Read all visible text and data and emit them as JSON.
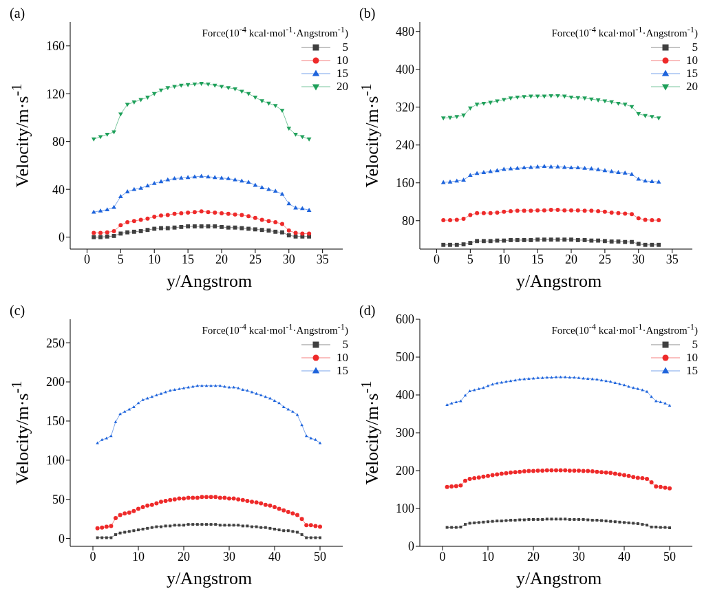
{
  "chart_data": [
    {
      "type": "line",
      "title": "(a)",
      "xlabel": "y/Angstrom",
      "ylabel": "Velocity/m·s$^{-1}$",
      "legend_title": "Force(10$^{-4}$ kcal·mol$^{-1}$·Angstrom$^{-1}$)",
      "legend": "top right",
      "x": [
        1,
        2,
        3,
        4,
        5,
        6,
        7,
        8,
        9,
        10,
        11,
        12,
        13,
        14,
        15,
        16,
        17,
        18,
        19,
        20,
        21,
        22,
        23,
        24,
        25,
        26,
        27,
        28,
        29,
        30,
        31,
        32,
        33
      ],
      "xlim": [
        -2.5,
        38
      ],
      "xticks": [
        0,
        5,
        10,
        15,
        20,
        25,
        30,
        35
      ],
      "ylim": [
        -10,
        180
      ],
      "yticks": [
        0,
        40,
        80,
        120,
        160
      ],
      "series": [
        {
          "name": "5",
          "color": "#404040",
          "marker": "square",
          "values": [
            0,
            0,
            0.5,
            1,
            3,
            4,
            4.5,
            5,
            6,
            7,
            7.5,
            7.5,
            8,
            8.5,
            9,
            9,
            9,
            9,
            9,
            8.5,
            8,
            8,
            7.5,
            7,
            6.5,
            6,
            5.5,
            4.5,
            4,
            1.5,
            0.5,
            0.5,
            0.5
          ]
        },
        {
          "name": "10",
          "color": "#ee2a2a",
          "marker": "circle",
          "values": [
            3.5,
            3.5,
            4,
            5,
            10,
            12.5,
            13.5,
            14.5,
            15.5,
            17,
            18,
            18.5,
            19.5,
            20,
            20.5,
            21,
            21.5,
            21,
            20.5,
            20,
            19.5,
            19,
            18.5,
            17.5,
            16,
            14.5,
            13.5,
            12.5,
            11,
            5.5,
            3.5,
            3,
            3
          ]
        },
        {
          "name": "15",
          "color": "#1e64dc",
          "marker": "triangle",
          "values": [
            21,
            22,
            23,
            25,
            34,
            38,
            40,
            41,
            43,
            45,
            46.5,
            48,
            49,
            49.5,
            50,
            50.5,
            51,
            50.5,
            50,
            49.5,
            49,
            48,
            47,
            46,
            43.5,
            41.5,
            40,
            38.5,
            36,
            28,
            24.5,
            24,
            22.5
          ]
        },
        {
          "name": "20",
          "color": "#1fa05a",
          "marker": "triangle-down",
          "values": [
            82,
            84,
            86,
            88,
            103,
            111,
            113,
            115,
            117,
            120,
            123,
            125,
            126,
            127,
            127.5,
            128,
            128.5,
            128,
            127,
            126,
            125,
            124,
            122,
            120,
            117,
            114,
            112,
            110,
            106,
            91,
            86,
            84,
            82
          ]
        }
      ]
    },
    {
      "type": "line",
      "title": "(b)",
      "xlabel": "y/Angstrom",
      "ylabel": "Velocity/m·s$^{-1}$",
      "legend_title": "Force(10$^{-4}$ kcal·mol$^{-1}$·Angstrom$^{-1}$)",
      "legend": "top right",
      "x": [
        1,
        2,
        3,
        4,
        5,
        6,
        7,
        8,
        9,
        10,
        11,
        12,
        13,
        14,
        15,
        16,
        17,
        18,
        19,
        20,
        21,
        22,
        23,
        24,
        25,
        26,
        27,
        28,
        29,
        30,
        31,
        32,
        33
      ],
      "xlim": [
        -2.5,
        38
      ],
      "xticks": [
        0,
        5,
        10,
        15,
        20,
        25,
        30,
        35
      ],
      "ylim": [
        20,
        500
      ],
      "yticks": [
        80,
        160,
        240,
        320,
        400,
        480
      ],
      "series": [
        {
          "name": "5",
          "color": "#404040",
          "marker": "square",
          "values": [
            29,
            29,
            29,
            30,
            33,
            37,
            37,
            37,
            38,
            38,
            39,
            39,
            39,
            39,
            40,
            40,
            40,
            40,
            40,
            40,
            39,
            39,
            38,
            38,
            37,
            36,
            36,
            35,
            35,
            31,
            29,
            29,
            29
          ]
        },
        {
          "name": "10",
          "color": "#ee2a2a",
          "marker": "circle",
          "values": [
            81,
            81,
            82,
            84,
            92,
            96,
            96,
            96,
            97,
            99,
            100,
            101,
            101,
            101,
            102,
            102,
            103,
            103,
            102,
            102,
            102,
            101,
            101,
            100,
            99,
            97,
            96,
            95,
            94,
            85,
            82,
            81,
            81
          ]
        },
        {
          "name": "15",
          "color": "#1e64dc",
          "marker": "triangle",
          "values": [
            161,
            162,
            164,
            166,
            176,
            180,
            182,
            184,
            186,
            189,
            190,
            191,
            192,
            193,
            194,
            195,
            194,
            194,
            193,
            192,
            192,
            191,
            190,
            188,
            186,
            184,
            182,
            181,
            178,
            168,
            164,
            163,
            162
          ]
        },
        {
          "name": "20",
          "color": "#1fa05a",
          "marker": "triangle-down",
          "values": [
            297,
            298,
            300,
            303,
            318,
            326,
            328,
            330,
            333,
            336,
            339,
            341,
            342,
            343,
            343,
            343,
            344,
            344,
            343,
            341,
            340,
            339,
            337,
            335,
            333,
            331,
            328,
            326,
            321,
            306,
            302,
            300,
            297
          ]
        }
      ]
    },
    {
      "type": "line",
      "title": "(c)",
      "xlabel": "y/Angstrom",
      "ylabel": "Velocity/m·s$^{-1}$",
      "legend_title": "Force(10$^{-4}$ kcal·mol$^{-1}$·Angstrom$^{-1}$)",
      "legend": "top right",
      "x": [
        1,
        2,
        3,
        4,
        5,
        6,
        7,
        8,
        9,
        10,
        11,
        12,
        13,
        14,
        15,
        16,
        17,
        18,
        19,
        20,
        21,
        22,
        23,
        24,
        25,
        26,
        27,
        28,
        29,
        30,
        31,
        32,
        33,
        34,
        35,
        36,
        37,
        38,
        39,
        40,
        41,
        42,
        43,
        44,
        45,
        46,
        47,
        48,
        49,
        50
      ],
      "xlim": [
        -5,
        55
      ],
      "xticks": [
        0,
        10,
        20,
        30,
        40,
        50
      ],
      "ylim": [
        -10,
        280
      ],
      "yticks": [
        0,
        50,
        100,
        150,
        200,
        250
      ],
      "series": [
        {
          "name": "5",
          "color": "#404040",
          "marker": "square",
          "values": [
            1,
            1,
            1,
            1,
            5,
            7,
            8,
            9,
            10,
            11,
            12,
            13,
            14,
            15,
            15,
            16,
            16,
            17,
            17,
            17,
            18,
            18,
            18,
            18,
            18,
            18,
            18,
            17,
            17,
            17,
            17,
            17,
            16,
            16,
            15,
            15,
            14,
            14,
            13,
            12,
            11,
            10,
            10,
            9,
            8,
            5,
            1,
            1,
            1,
            1
          ]
        },
        {
          "name": "10",
          "color": "#ee2a2a",
          "marker": "circle",
          "values": [
            13,
            14,
            15,
            16,
            26,
            30,
            32,
            33,
            35,
            38,
            40,
            42,
            43,
            45,
            47,
            48,
            49,
            50,
            51,
            51,
            52,
            52,
            52,
            53,
            53,
            53,
            53,
            52,
            52,
            51,
            51,
            50,
            49,
            48,
            47,
            46,
            45,
            43,
            42,
            40,
            38,
            36,
            34,
            32,
            30,
            25,
            17,
            17,
            16,
            15
          ]
        },
        {
          "name": "15",
          "color": "#1e64dc",
          "marker": "triangle",
          "values": [
            122,
            126,
            128,
            131,
            149,
            159,
            162,
            165,
            168,
            173,
            177,
            179,
            181,
            183,
            185,
            187,
            189,
            190,
            191,
            192,
            193,
            194,
            195,
            195,
            195,
            195,
            195,
            195,
            194,
            193,
            193,
            192,
            190,
            189,
            187,
            185,
            183,
            181,
            179,
            176,
            173,
            168,
            165,
            162,
            158,
            145,
            131,
            128,
            126,
            122
          ]
        }
      ]
    },
    {
      "type": "line",
      "title": "(d)",
      "xlabel": "y/Angstrom",
      "ylabel": "Velocity/m·s$^{-1}$",
      "legend_title": "Force(10$^{-4}$ kcal·mol$^{-1}$·Angstrom$^{-1}$)",
      "legend": "top right",
      "x": [
        1,
        2,
        3,
        4,
        5,
        6,
        7,
        8,
        9,
        10,
        11,
        12,
        13,
        14,
        15,
        16,
        17,
        18,
        19,
        20,
        21,
        22,
        23,
        24,
        25,
        26,
        27,
        28,
        29,
        30,
        31,
        32,
        33,
        34,
        35,
        36,
        37,
        38,
        39,
        40,
        41,
        42,
        43,
        44,
        45,
        46,
        47,
        48,
        49,
        50
      ],
      "xlim": [
        -5,
        55
      ],
      "xticks": [
        0,
        10,
        20,
        30,
        40,
        50
      ],
      "ylim": [
        0,
        600
      ],
      "yticks": [
        0,
        100,
        200,
        300,
        400,
        500,
        600
      ],
      "series": [
        {
          "name": "5",
          "color": "#404040",
          "marker": "square",
          "values": [
            50,
            50,
            50,
            51,
            58,
            61,
            62,
            63,
            64,
            65,
            66,
            67,
            67,
            68,
            69,
            69,
            70,
            70,
            71,
            71,
            71,
            71,
            72,
            72,
            72,
            72,
            72,
            71,
            71,
            71,
            71,
            70,
            69,
            69,
            68,
            67,
            66,
            65,
            64,
            63,
            62,
            61,
            60,
            58,
            56,
            51,
            51,
            50,
            50,
            49
          ]
        },
        {
          "name": "10",
          "color": "#ee2a2a",
          "marker": "circle",
          "values": [
            157,
            158,
            159,
            161,
            173,
            178,
            180,
            182,
            184,
            186,
            188,
            190,
            192,
            193,
            195,
            196,
            197,
            198,
            199,
            199,
            200,
            200,
            201,
            201,
            201,
            201,
            201,
            200,
            200,
            200,
            199,
            199,
            198,
            197,
            196,
            195,
            194,
            192,
            190,
            188,
            186,
            183,
            181,
            180,
            178,
            169,
            158,
            157,
            155,
            153
          ]
        },
        {
          "name": "15",
          "color": "#1e64dc",
          "marker": "triangle",
          "values": [
            374,
            378,
            381,
            384,
            399,
            410,
            413,
            416,
            419,
            424,
            428,
            431,
            433,
            435,
            437,
            439,
            441,
            442,
            443,
            444,
            445,
            445,
            446,
            446,
            447,
            447,
            447,
            446,
            446,
            445,
            444,
            443,
            442,
            441,
            439,
            437,
            435,
            432,
            429,
            426,
            422,
            419,
            416,
            413,
            409,
            395,
            384,
            381,
            378,
            372
          ]
        }
      ]
    }
  ]
}
